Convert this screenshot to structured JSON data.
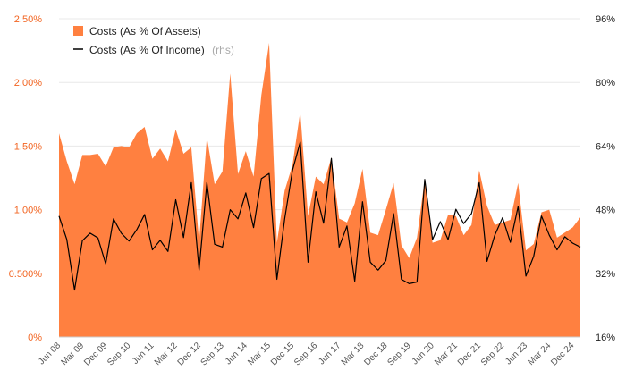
{
  "chart_data": {
    "type": "area",
    "legend": {
      "position": "top-left",
      "series0": "Costs (As % Of Assets)",
      "series1": "Costs (As % Of Income)",
      "series1_suffix": "(rhs)"
    },
    "y_left": {
      "min": 0,
      "max": 2.5,
      "ticks": [
        "0%",
        "0.500%",
        "1.00%",
        "1.50%",
        "2.00%",
        "2.50%"
      ]
    },
    "y_right": {
      "min": 16,
      "max": 96,
      "ticks": [
        "16%",
        "32%",
        "48%",
        "64%",
        "80%",
        "96%"
      ]
    },
    "x_tick_labels": [
      "Jun 08",
      "Mar 09",
      "Dec 09",
      "Sep 10",
      "Jun 11",
      "Mar 12",
      "Dec 12",
      "Sep 13",
      "Jun 14",
      "Mar 15",
      "Dec 15",
      "Sep 16",
      "Jun 17",
      "Mar 18",
      "Dec 18",
      "Sep 19",
      "Jun 20",
      "Mar 21",
      "Dec 21",
      "Sep 22",
      "Jun 23",
      "Mar 24",
      "Dec 24"
    ],
    "quarters": [
      "Jun 08",
      "Sep 08",
      "Dec 08",
      "Mar 09",
      "Jun 09",
      "Sep 09",
      "Dec 09",
      "Mar 10",
      "Jun 10",
      "Sep 10",
      "Dec 10",
      "Mar 11",
      "Jun 11",
      "Sep 11",
      "Dec 11",
      "Mar 12",
      "Jun 12",
      "Sep 12",
      "Dec 12",
      "Mar 13",
      "Jun 13",
      "Sep 13",
      "Dec 13",
      "Mar 14",
      "Jun 14",
      "Sep 14",
      "Dec 14",
      "Mar 15",
      "Jun 15",
      "Sep 15",
      "Dec 15",
      "Mar 16",
      "Jun 16",
      "Sep 16",
      "Dec 16",
      "Mar 17",
      "Jun 17",
      "Sep 17",
      "Dec 17",
      "Mar 18",
      "Jun 18",
      "Sep 18",
      "Dec 18",
      "Mar 19",
      "Jun 19",
      "Sep 19",
      "Dec 19",
      "Mar 20",
      "Jun 20",
      "Sep 20",
      "Dec 20",
      "Mar 21",
      "Jun 21",
      "Sep 21",
      "Dec 21",
      "Mar 22",
      "Jun 22",
      "Sep 22",
      "Dec 22",
      "Mar 23",
      "Jun 23",
      "Sep 23",
      "Dec 23",
      "Mar 24",
      "Jun 24",
      "Sep 24",
      "Dec 24",
      "Mar 25"
    ],
    "series": [
      {
        "name": "Costs (As % Of Assets)",
        "axis": "left",
        "color": "#ff8040",
        "values": [
          1.6,
          1.38,
          1.2,
          1.43,
          1.43,
          1.44,
          1.34,
          1.49,
          1.5,
          1.49,
          1.6,
          1.65,
          1.4,
          1.48,
          1.38,
          1.63,
          1.44,
          1.49,
          0.75,
          1.57,
          1.2,
          1.3,
          2.07,
          1.28,
          1.46,
          1.26,
          1.9,
          2.31,
          0.74,
          1.15,
          1.35,
          1.77,
          0.95,
          1.26,
          1.2,
          1.41,
          0.93,
          0.9,
          1.05,
          1.32,
          0.82,
          0.8,
          1.0,
          1.21,
          0.72,
          0.62,
          0.78,
          1.24,
          0.74,
          0.76,
          0.96,
          0.95,
          0.8,
          0.88,
          1.31,
          1.03,
          0.88,
          0.9,
          0.92,
          1.21,
          0.68,
          0.73,
          0.98,
          1.0,
          0.78,
          0.82,
          0.86,
          0.94
        ]
      },
      {
        "name": "Costs (As % Of Income)",
        "axis": "right",
        "color": "#000000",
        "values": [
          46.4,
          40.5,
          27.8,
          40.2,
          42.1,
          40.9,
          34.4,
          45.7,
          42.1,
          40.1,
          43.0,
          46.8,
          37.9,
          40.3,
          37.5,
          50.5,
          41.0,
          54.8,
          32.8,
          54.8,
          39.3,
          38.6,
          48.0,
          45.7,
          52.2,
          43.5,
          55.8,
          57.1,
          30.5,
          45.7,
          57.9,
          65.0,
          34.8,
          52.5,
          44.6,
          60.9,
          38.6,
          43.9,
          30.0,
          50.0,
          34.8,
          32.8,
          35.2,
          47.0,
          30.5,
          29.4,
          29.8,
          55.6,
          40.5,
          45.0,
          40.5,
          48.1,
          44.5,
          47.0,
          54.8,
          35.0,
          41.6,
          46.0,
          39.8,
          48.8,
          31.3,
          36.3,
          46.4,
          41.6,
          37.9,
          41.2,
          39.6,
          38.6
        ]
      }
    ],
    "grid": {
      "horizontal": true,
      "vertical": false
    }
  }
}
